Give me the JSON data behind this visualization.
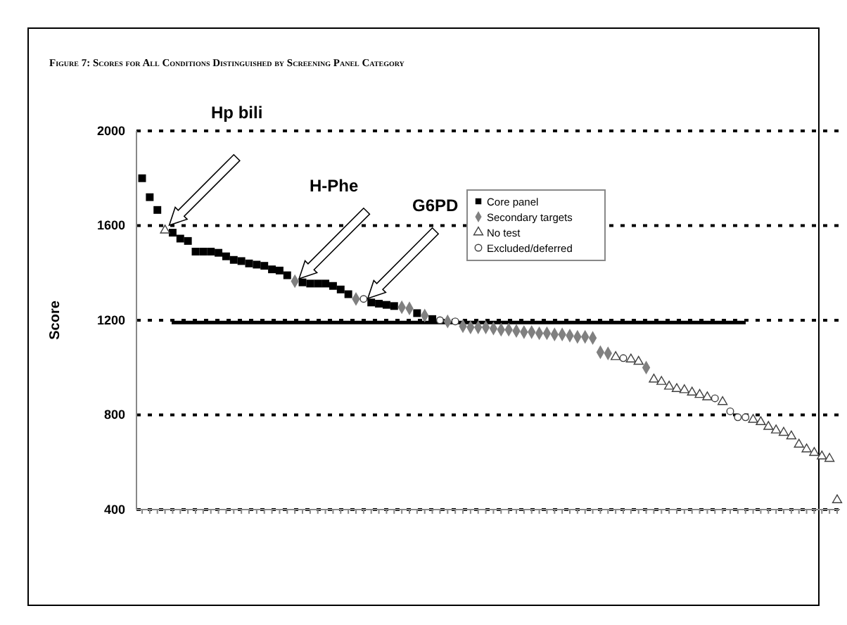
{
  "chart_data": {
    "type": "scatter",
    "title": "Figure 7: Scores for All Conditions Distinguished by Screening Panel Category",
    "ylabel": "Score",
    "categories": [
      null,
      null,
      null,
      null,
      null,
      null,
      null,
      null,
      null,
      null,
      null,
      null,
      null,
      null,
      null,
      null,
      null,
      null,
      null,
      null,
      null,
      null,
      null,
      null,
      null,
      null,
      null,
      null,
      null,
      null,
      null,
      null,
      null,
      null,
      null,
      null,
      null,
      null,
      null,
      null,
      null,
      null,
      null,
      null,
      null,
      null,
      null,
      null,
      null,
      null,
      null,
      null,
      null,
      null,
      null,
      null,
      null,
      null,
      null,
      null,
      null,
      null,
      null,
      null,
      null,
      null,
      null,
      null,
      null,
      null,
      null,
      null,
      null,
      null,
      null,
      null,
      null,
      null,
      null,
      null,
      null,
      null,
      null,
      null,
      null,
      null,
      null,
      null,
      null,
      null,
      null,
      null
    ],
    "ylim": [
      400,
      2000
    ],
    "yticks": [
      400,
      800,
      1200,
      1600,
      2000
    ],
    "grid": "y",
    "legend": "top right",
    "ref_lines": [
      {
        "axis": "y",
        "value": 1190,
        "color": "#000000",
        "line_style": "solid"
      }
    ],
    "annotations": [
      "Hp bili",
      "H-Phe",
      "G6PD"
    ],
    "series": [
      {
        "name": "Core panel",
        "color": "#000000",
        "marker": "square",
        "values": [
          1800,
          1720,
          1666,
          null,
          1570,
          1545,
          1535,
          1490,
          1490,
          1490,
          1485,
          1470,
          1455,
          1450,
          1440,
          1435,
          1430,
          1415,
          1410,
          1390,
          null,
          1360,
          1355,
          1355,
          1355,
          1345,
          1330,
          1310,
          null,
          null,
          1275,
          1270,
          1265,
          1260,
          null,
          null,
          1230,
          null,
          1205,
          null,
          null,
          null,
          null,
          null,
          null,
          null,
          null,
          null,
          null,
          null,
          null,
          null,
          null,
          null,
          null,
          null,
          null,
          null,
          null,
          null,
          null,
          null,
          null,
          null,
          null,
          null,
          null,
          null,
          null,
          null,
          null,
          null,
          null,
          null,
          null,
          null,
          null,
          null,
          null,
          null,
          null,
          null,
          null,
          null,
          null,
          null,
          null,
          null,
          null,
          null,
          null,
          null
        ]
      },
      {
        "name": "Secondary targets",
        "color": "#808080",
        "marker": "diamond",
        "values": [
          null,
          null,
          null,
          null,
          null,
          null,
          null,
          null,
          null,
          null,
          null,
          null,
          null,
          null,
          null,
          null,
          null,
          null,
          null,
          null,
          1365,
          null,
          null,
          null,
          null,
          null,
          null,
          null,
          1290,
          null,
          null,
          null,
          null,
          null,
          1255,
          1250,
          null,
          1220,
          null,
          null,
          1195,
          null,
          1175,
          1170,
          1170,
          1170,
          1165,
          1160,
          1160,
          1155,
          1150,
          1150,
          1145,
          1145,
          1140,
          1140,
          1135,
          1130,
          1130,
          1125,
          1065,
          1060,
          null,
          null,
          null,
          null,
          1000,
          null,
          null,
          null,
          null,
          null,
          null,
          null,
          null,
          null,
          null,
          null,
          null,
          null,
          null,
          null,
          null,
          null,
          null,
          null,
          null,
          null,
          null,
          null,
          null,
          null
        ]
      },
      {
        "name": "No test",
        "color": "#404040",
        "marker": "triangle",
        "values": [
          null,
          null,
          null,
          1580,
          null,
          null,
          null,
          null,
          null,
          null,
          null,
          null,
          null,
          null,
          null,
          null,
          null,
          null,
          null,
          null,
          null,
          null,
          null,
          null,
          null,
          null,
          null,
          null,
          null,
          null,
          null,
          null,
          null,
          null,
          null,
          null,
          null,
          null,
          null,
          null,
          null,
          null,
          null,
          null,
          null,
          null,
          null,
          null,
          null,
          null,
          null,
          null,
          null,
          null,
          null,
          null,
          null,
          null,
          null,
          null,
          null,
          null,
          1045,
          null,
          1035,
          1025,
          null,
          950,
          940,
          920,
          910,
          905,
          895,
          885,
          875,
          null,
          855,
          null,
          null,
          null,
          780,
          770,
          750,
          735,
          725,
          710,
          675,
          655,
          640,
          625,
          615,
          440
        ]
      },
      {
        "name": "Excluded/deferred",
        "color": "#404040",
        "marker": "circle",
        "values": [
          null,
          null,
          null,
          null,
          null,
          null,
          null,
          null,
          null,
          null,
          null,
          null,
          null,
          null,
          null,
          null,
          null,
          null,
          null,
          null,
          null,
          null,
          null,
          null,
          null,
          null,
          null,
          null,
          null,
          1290,
          null,
          null,
          null,
          null,
          null,
          null,
          null,
          null,
          null,
          1200,
          null,
          1195,
          null,
          null,
          null,
          null,
          null,
          null,
          null,
          null,
          null,
          null,
          null,
          null,
          null,
          null,
          null,
          null,
          null,
          null,
          null,
          null,
          null,
          1040,
          null,
          null,
          null,
          null,
          null,
          null,
          null,
          null,
          null,
          null,
          null,
          870,
          null,
          815,
          790,
          790,
          null,
          null,
          null,
          null,
          null,
          null,
          null,
          null,
          null,
          null,
          null,
          null
        ]
      }
    ]
  }
}
